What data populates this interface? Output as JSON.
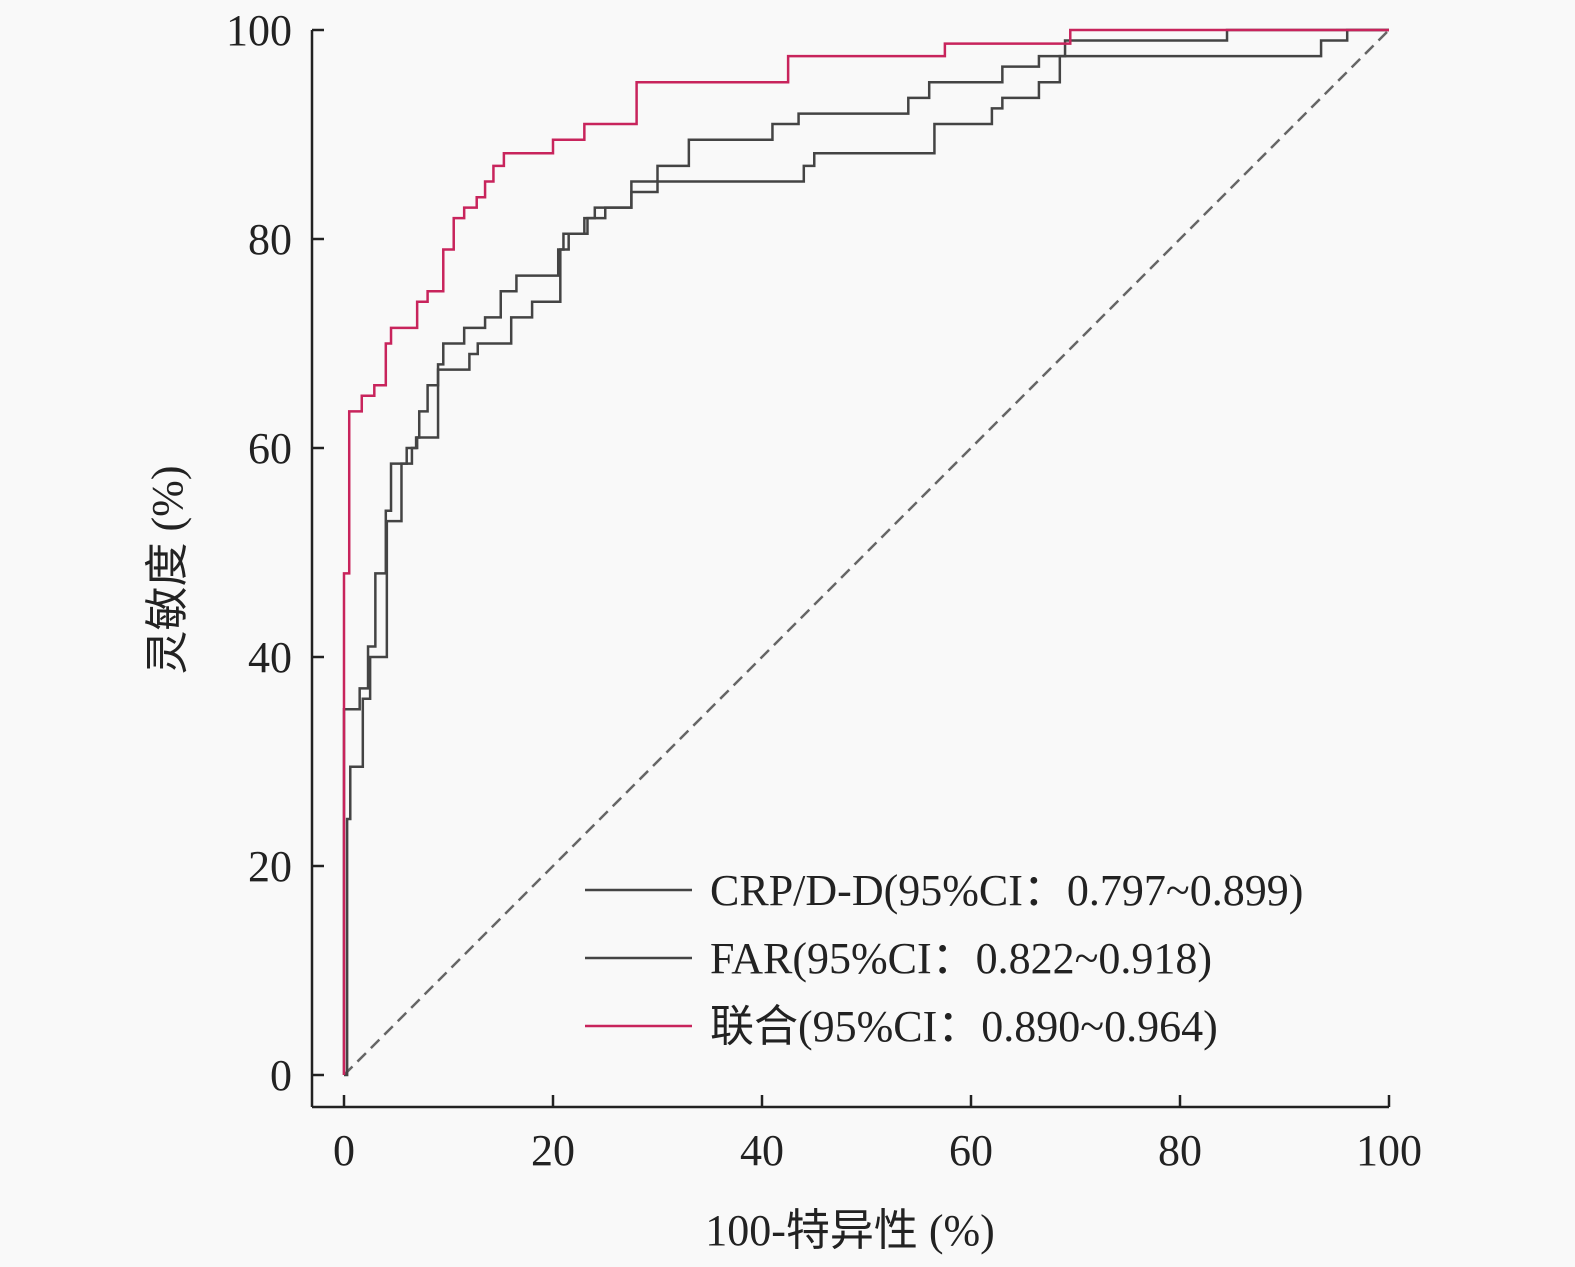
{
  "chart_data": {
    "type": "line",
    "title": "",
    "xlabel": "100-特异性 (%)",
    "ylabel": "灵敏度 (%)",
    "xlim": [
      0,
      100
    ],
    "ylim": [
      0,
      100
    ],
    "xticks": [
      "0",
      "20",
      "40",
      "60",
      "80",
      "100"
    ],
    "yticks": [
      "0",
      "20",
      "40",
      "60",
      "80",
      "100"
    ],
    "grid": false,
    "legend_position": "bottom-right",
    "reference_line": {
      "name": "diagonal",
      "style": "dashed",
      "color": "#666666"
    },
    "series": [
      {
        "name": "CRP/D-D(95%CI：0.797~0.899)",
        "color": "#444444",
        "points": [
          [
            0,
            0
          ],
          [
            0,
            35
          ],
          [
            1.5,
            37
          ],
          [
            2.3,
            41
          ],
          [
            3,
            48
          ],
          [
            4,
            54
          ],
          [
            4.5,
            58.5
          ],
          [
            6,
            60
          ],
          [
            7,
            61
          ],
          [
            7.2,
            63.5
          ],
          [
            8,
            66
          ],
          [
            9,
            68
          ],
          [
            9.5,
            70
          ],
          [
            11.5,
            71.5
          ],
          [
            13.5,
            72.5
          ],
          [
            15,
            75
          ],
          [
            16.5,
            76.5
          ],
          [
            20.5,
            79
          ],
          [
            21,
            80.5
          ],
          [
            23,
            82
          ],
          [
            24,
            83
          ],
          [
            27.5,
            85.5
          ],
          [
            30,
            87
          ],
          [
            33,
            89.5
          ],
          [
            41,
            91
          ],
          [
            43.5,
            92
          ],
          [
            54,
            93.5
          ],
          [
            56,
            95
          ],
          [
            63,
            96.5
          ],
          [
            66.5,
            97.5
          ],
          [
            69,
            99
          ],
          [
            84.5,
            100
          ],
          [
            100,
            100
          ]
        ]
      },
      {
        "name": "FAR(95%CI：0.822~0.918)",
        "color": "#444444",
        "points": [
          [
            0,
            0
          ],
          [
            0.3,
            24.5
          ],
          [
            0.6,
            29.5
          ],
          [
            1.8,
            36
          ],
          [
            2.5,
            40
          ],
          [
            4.1,
            53
          ],
          [
            5.5,
            58.5
          ],
          [
            6.5,
            60
          ],
          [
            6.9,
            61
          ],
          [
            9,
            67.5
          ],
          [
            12,
            69
          ],
          [
            12.8,
            70
          ],
          [
            16,
            72.5
          ],
          [
            18,
            74
          ],
          [
            20.7,
            79
          ],
          [
            21.5,
            80.5
          ],
          [
            23.3,
            82
          ],
          [
            25,
            83
          ],
          [
            27.5,
            84.5
          ],
          [
            30,
            85.5
          ],
          [
            44,
            87
          ],
          [
            45,
            88.2
          ],
          [
            56.5,
            91
          ],
          [
            62,
            92.5
          ],
          [
            63,
            93.5
          ],
          [
            66.5,
            95
          ],
          [
            68.5,
            97.5
          ],
          [
            93.5,
            99
          ],
          [
            96,
            100
          ],
          [
            100,
            100
          ]
        ]
      },
      {
        "name": "联合(95%CI：0.890~0.964)",
        "color": "#c8245c",
        "points": [
          [
            0,
            0
          ],
          [
            0,
            48
          ],
          [
            0.5,
            63.5
          ],
          [
            1.7,
            65
          ],
          [
            2.9,
            66
          ],
          [
            4,
            70
          ],
          [
            4.5,
            71.5
          ],
          [
            7,
            74
          ],
          [
            8,
            75
          ],
          [
            9.5,
            79
          ],
          [
            10.5,
            82
          ],
          [
            11.5,
            83
          ],
          [
            12.7,
            84
          ],
          [
            13.5,
            85.5
          ],
          [
            14.3,
            87
          ],
          [
            15.3,
            88.2
          ],
          [
            20,
            89.5
          ],
          [
            23,
            91
          ],
          [
            28,
            95
          ],
          [
            42.5,
            97.5
          ],
          [
            57.5,
            98.7
          ],
          [
            69.5,
            100
          ],
          [
            100,
            100
          ]
        ]
      }
    ]
  }
}
